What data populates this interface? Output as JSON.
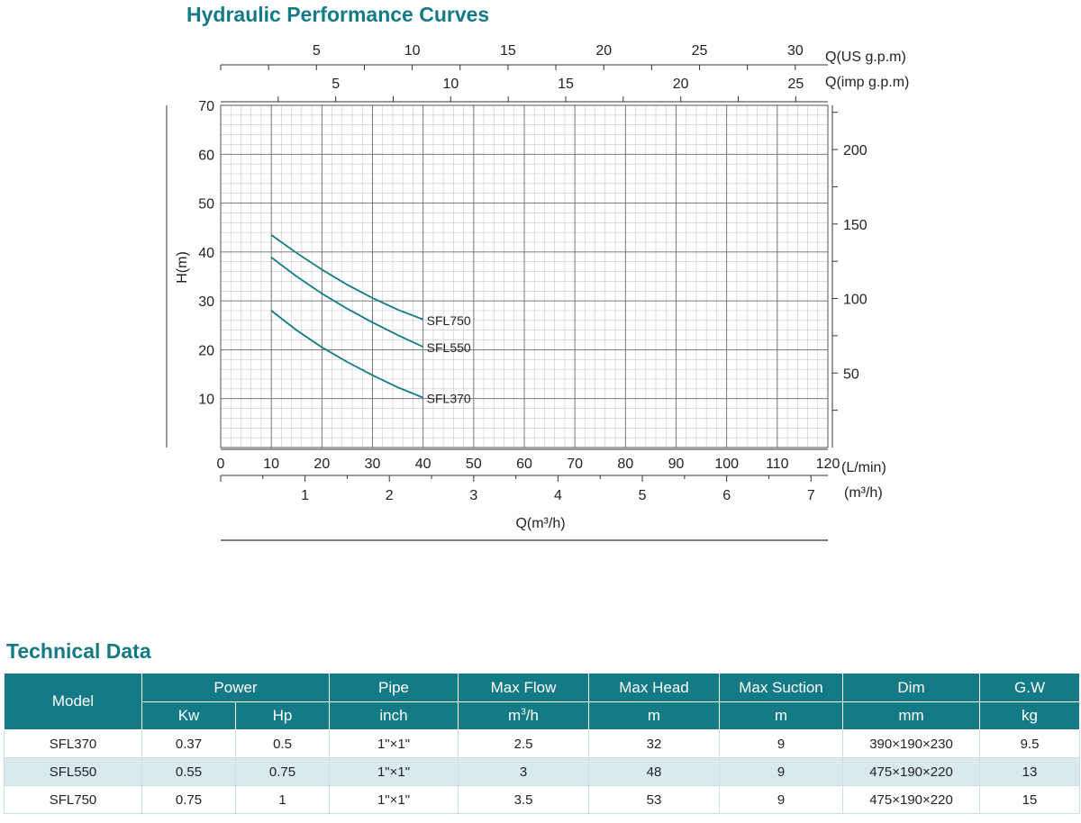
{
  "chart_title": "Hydraulic Performance Curves",
  "table_title": "Technical Data",
  "colors": {
    "accent": "#137a86",
    "curve": "#137a86",
    "row_alt": "#d9e9ee"
  },
  "chart_data": {
    "type": "line",
    "title": "Hydraulic Performance Curves",
    "xlabel": "Q(m³/h)",
    "ylabel": "H(m)",
    "xlim": [
      0,
      120
    ],
    "ylim": [
      0,
      70
    ],
    "grid": true,
    "x_unit_label": "(L/min)",
    "x_ticks": [
      0,
      10,
      20,
      30,
      40,
      50,
      60,
      70,
      80,
      90,
      100,
      110,
      120
    ],
    "y_ticks": [
      10,
      20,
      30,
      40,
      50,
      60,
      70
    ],
    "secondary_axes": {
      "us_gpm": {
        "label": "Q(US g.p.m)",
        "ticks": [
          5,
          10,
          15,
          20,
          25,
          30
        ]
      },
      "imp_gpm": {
        "label": "Q(imp g.p.m)",
        "ticks": [
          5,
          10,
          15,
          20,
          25
        ]
      },
      "m3h": {
        "label": "(m³/h)",
        "ticks": [
          1,
          2,
          3,
          4,
          5,
          6,
          7
        ]
      },
      "right": {
        "ticks": [
          50,
          100,
          150,
          200
        ]
      }
    },
    "series": [
      {
        "name": "SFL750",
        "x": [
          10,
          15,
          20,
          25,
          30,
          35,
          40
        ],
        "y": [
          43.5,
          39.8,
          36.4,
          33.3,
          30.6,
          28.2,
          26.2
        ]
      },
      {
        "name": "SFL550",
        "x": [
          10,
          15,
          20,
          25,
          30,
          35,
          40
        ],
        "y": [
          38.9,
          35.0,
          31.5,
          28.4,
          25.6,
          23.0,
          20.6
        ]
      },
      {
        "name": "SFL370",
        "x": [
          10,
          15,
          20,
          25,
          30,
          35,
          40
        ],
        "y": [
          28.0,
          24.0,
          20.5,
          17.5,
          14.8,
          12.3,
          10.2
        ]
      }
    ]
  },
  "table": {
    "headers": {
      "model": "Model",
      "power": "Power",
      "pipe": "Pipe",
      "max_flow": "Max Flow",
      "max_head": "Max Head",
      "max_suction": "Max Suction",
      "dim": "Dim",
      "gw": "G.W"
    },
    "units": {
      "kw": "Kw",
      "hp": "Hp",
      "pipe": "inch",
      "flow_base": "m",
      "flow_exp": "3",
      "flow_tail": "/h",
      "head": "m",
      "suction": "m",
      "dim": "mm",
      "gw": "kg"
    },
    "rows": [
      {
        "model": "SFL370",
        "kw": "0.37",
        "hp": "0.5",
        "pipe": "1\"×1\"",
        "max_flow": "2.5",
        "max_head": "32",
        "max_suction": "9",
        "dim": "390×190×230",
        "gw": "9.5"
      },
      {
        "model": "SFL550",
        "kw": "0.55",
        "hp": "0.75",
        "pipe": "1\"×1\"",
        "max_flow": "3",
        "max_head": "48",
        "max_suction": "9",
        "dim": "475×190×220",
        "gw": "13"
      },
      {
        "model": "SFL750",
        "kw": "0.75",
        "hp": "1",
        "pipe": "1\"×1\"",
        "max_flow": "3.5",
        "max_head": "53",
        "max_suction": "9",
        "dim": "475×190×220",
        "gw": "15"
      }
    ]
  }
}
